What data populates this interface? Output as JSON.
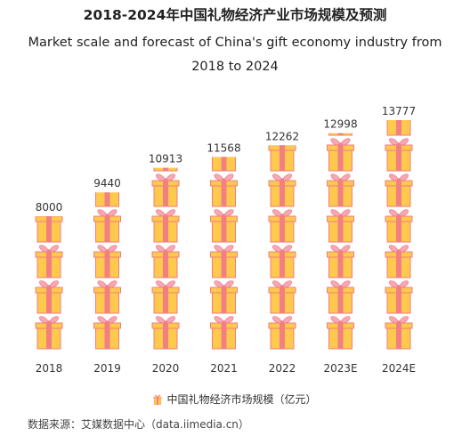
{
  "title_cn": "2018-2024年中国礼物经济产业市场规模及预测",
  "title_en": "Market scale and forecast of China's gift economy industry from 2018 to 2024",
  "legend_label": "中国礼物经济市场规模（亿元）",
  "source": "数据来源：艾媒数据中心（data.iimedia.cn）",
  "colors": {
    "box": "#ffc94d",
    "box_stroke": "#f07d7d",
    "ribbon": "#f27f82",
    "bow": "#f7a8b8"
  },
  "chart_data": {
    "type": "bar",
    "style": "pictograph-gift-icons",
    "categories": [
      "2018",
      "2019",
      "2020",
      "2021",
      "2022",
      "2023E",
      "2024E"
    ],
    "values": [
      8000,
      9440,
      10913,
      11568,
      12262,
      12998,
      13777
    ],
    "series": [
      {
        "name": "中国礼物经济市场规模（亿元）",
        "values": [
          8000,
          9440,
          10913,
          11568,
          12262,
          12998,
          13777
        ]
      }
    ],
    "ylim": [
      0,
      14000
    ],
    "grid": false,
    "legend_position": "bottom"
  }
}
